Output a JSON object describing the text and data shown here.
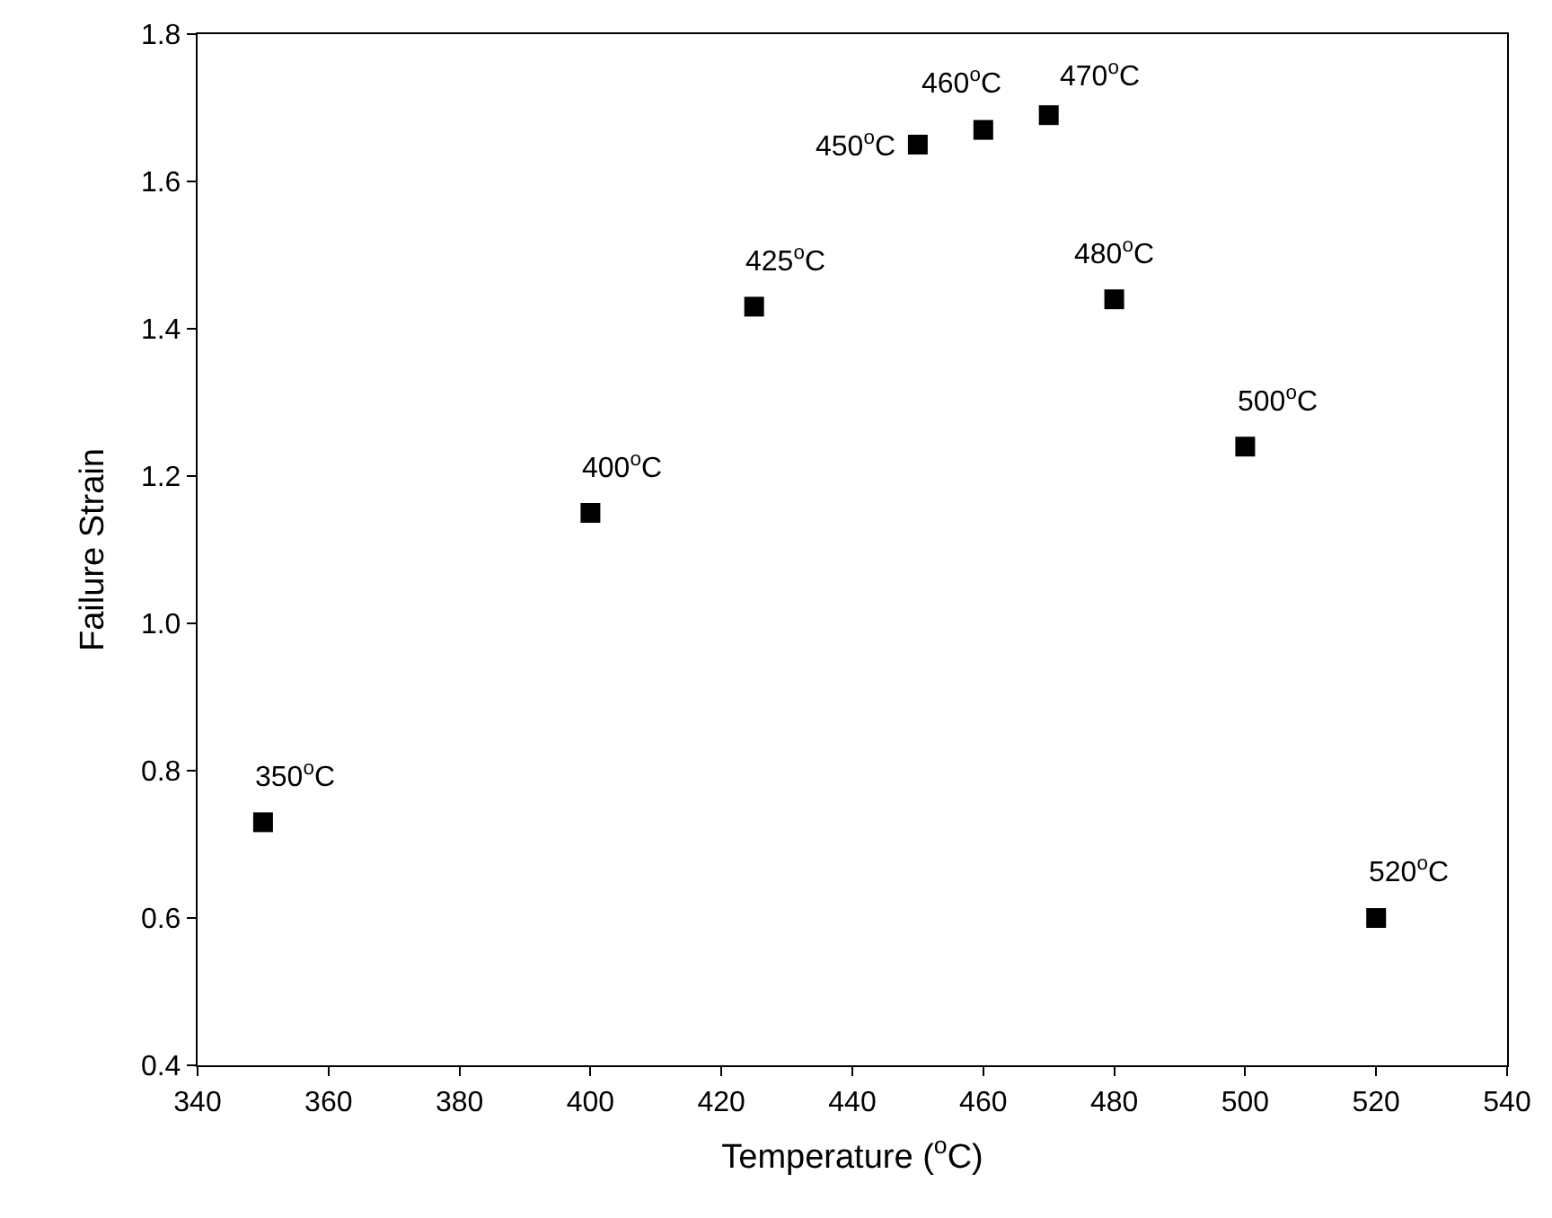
{
  "chart_data": {
    "type": "scatter",
    "xlabel": "Temperature ($^{o}$C)",
    "ylabel": "Failure Strain",
    "x": [
      350,
      400,
      425,
      450,
      460,
      470,
      480,
      500,
      520
    ],
    "series": [
      {
        "color": "#000000",
        "values": [
          0.73,
          1.15,
          1.43,
          1.65,
          1.67,
          1.69,
          1.44,
          1.24,
          0.6
        ]
      }
    ],
    "xlim": [
      340,
      540
    ],
    "xticks": [
      340,
      360,
      380,
      400,
      420,
      440,
      460,
      480,
      500,
      520,
      540
    ],
    "ylim": [
      0.4,
      1.8
    ],
    "yticks": [
      0.4,
      0.6,
      0.8,
      {
        "value": 1,
        "label": "1.0"
      },
      1.2,
      1.4,
      1.6,
      1.8
    ],
    "marker": "square",
    "grid": false,
    "legend": false,
    "annotations": [
      {
        "text": "350$^{o}$C",
        "x": 350,
        "y": 0.73
      },
      {
        "text": "400$^{o}$C",
        "x": 400,
        "y": 1.15
      },
      {
        "text": "425$^{o}$C",
        "x": 425,
        "y": 1.43
      },
      {
        "text": "450$^{o}$C",
        "x": 450,
        "y": 1.65
      },
      {
        "text": "460$^{o}$C",
        "x": 460,
        "y": 1.67
      },
      {
        "text": "470$^{o}$C",
        "x": 470,
        "y": 1.69
      },
      {
        "text": "480$^{o}$C",
        "x": 480,
        "y": 1.44
      },
      {
        "text": "500$^{o}$C",
        "x": 500,
        "y": 1.24
      },
      {
        "text": "520$^{o}$C",
        "x": 520,
        "y": 0.6
      }
    ]
  }
}
